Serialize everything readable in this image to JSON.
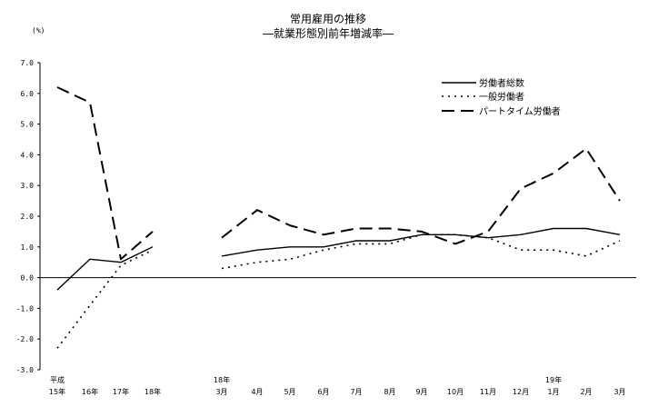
{
  "chart_data": {
    "type": "line",
    "title": "常用雇用の推移",
    "subtitle": "―就業形態別前年増減率―",
    "ylabel": "(%)",
    "ylim": [
      -3.0,
      7.0
    ],
    "yticks": [
      "7.0",
      "6.0",
      "5.0",
      "4.0",
      "3.0",
      "2.0",
      "1.0",
      "0.0",
      "-1.0",
      "-2.0",
      "-3.0"
    ],
    "categories": [
      {
        "upper": "平成",
        "lower": "15年"
      },
      {
        "upper": "",
        "lower": "16年"
      },
      {
        "upper": "",
        "lower": "17年"
      },
      {
        "upper": "",
        "lower": "18年"
      },
      {
        "upper": "18年",
        "lower": "3月"
      },
      {
        "upper": "",
        "lower": "4月"
      },
      {
        "upper": "",
        "lower": "5月"
      },
      {
        "upper": "",
        "lower": "6月"
      },
      {
        "upper": "",
        "lower": "7月"
      },
      {
        "upper": "",
        "lower": "8月"
      },
      {
        "upper": "",
        "lower": "9月"
      },
      {
        "upper": "",
        "lower": "10月"
      },
      {
        "upper": "",
        "lower": "11月"
      },
      {
        "upper": "",
        "lower": "12月"
      },
      {
        "upper": "19年",
        "lower": "1月"
      },
      {
        "upper": "",
        "lower": "2月"
      },
      {
        "upper": "",
        "lower": "3月"
      }
    ],
    "segments": [
      [
        0,
        3
      ],
      [
        4,
        16
      ]
    ],
    "legend_position": "top-right",
    "series": [
      {
        "name": "労働者総数",
        "style": "solid",
        "values": [
          -0.4,
          0.6,
          0.5,
          1.0,
          0.7,
          0.9,
          1.0,
          1.0,
          1.2,
          1.2,
          1.4,
          1.4,
          1.3,
          1.4,
          1.6,
          1.6,
          1.4
        ]
      },
      {
        "name": "一般労働者",
        "style": "dotted",
        "values": [
          -2.3,
          -0.9,
          0.4,
          0.9,
          0.3,
          0.5,
          0.6,
          0.9,
          1.1,
          1.1,
          1.4,
          1.4,
          1.3,
          0.9,
          0.9,
          0.7,
          1.2
        ]
      },
      {
        "name": "パートタイム労働者",
        "style": "dashed",
        "values": [
          6.2,
          5.7,
          0.6,
          1.5,
          1.3,
          2.2,
          1.7,
          1.4,
          1.6,
          1.6,
          1.5,
          1.1,
          1.5,
          2.9,
          3.4,
          4.2,
          2.5
        ]
      }
    ]
  },
  "colors": {
    "line": "#000000",
    "background": "#ffffff"
  }
}
